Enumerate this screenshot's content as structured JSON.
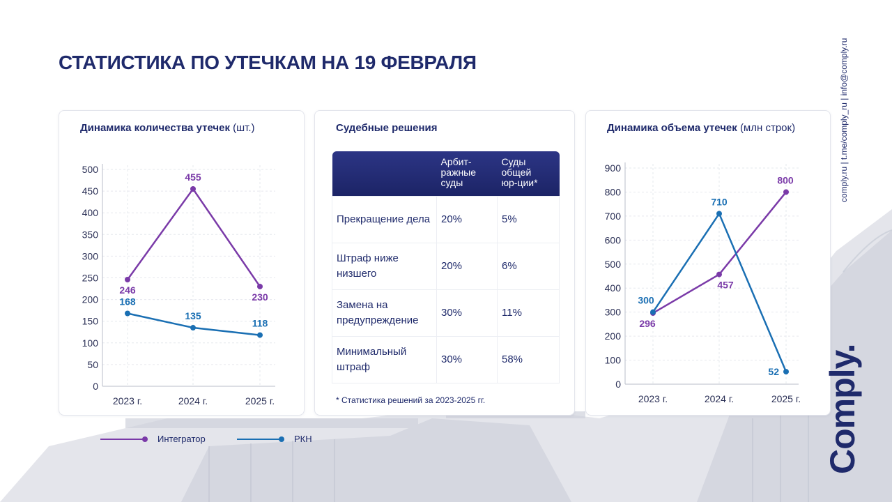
{
  "page": {
    "title": "СТАТИСТИКА ПО УТЕЧКАМ НА 19 ФЕВРАЛЯ",
    "contacts": "comply.ru | t.me/comply_ru | info@comply.ru",
    "brand": "Comply."
  },
  "colors": {
    "integrator": "#7a3aa8",
    "rkn": "#1a6fb3",
    "navy": "#1f2a6b"
  },
  "legend": [
    {
      "label": "Интегратор",
      "color": "#7a3aa8"
    },
    {
      "label": "РКН",
      "color": "#1a6fb3"
    }
  ],
  "court": {
    "title": "Судебные решения",
    "headers": [
      "",
      "Арбит-\nражные\nсуды",
      "Суды\nобщей\nюр-ции*"
    ],
    "rows": [
      {
        "label": "Прекращение дела",
        "arb": "20%",
        "gen": "5%"
      },
      {
        "label": "Штраф ниже низшего",
        "arb": "20%",
        "gen": "6%"
      },
      {
        "label": "Замена на предупреждение",
        "arb": "30%",
        "gen": "11%"
      },
      {
        "label": "Минимальный штраф",
        "arb": "30%",
        "gen": "58%"
      }
    ],
    "footnote": "* Статистика решений за 2023-2025 гг."
  },
  "chart_data": [
    {
      "type": "line",
      "title": "Динамика количества утечек",
      "unit": "(шт.)",
      "categories": [
        "2023 г.",
        "2024 г.",
        "2025 г."
      ],
      "ylim": [
        0,
        500
      ],
      "yticks": [
        0,
        50,
        100,
        150,
        200,
        250,
        300,
        350,
        400,
        450,
        500
      ],
      "grid": true,
      "series": [
        {
          "name": "Интегратор",
          "values": [
            246,
            455,
            230
          ],
          "color": "#7a3aa8"
        },
        {
          "name": "РКН",
          "values": [
            168,
            135,
            118
          ],
          "color": "#1a6fb3"
        }
      ]
    },
    {
      "type": "line",
      "title": "Динамика объема утечек",
      "unit": "(млн строк)",
      "categories": [
        "2023 г.",
        "2024 г.",
        "2025 г."
      ],
      "ylim": [
        0,
        900
      ],
      "yticks": [
        0,
        100,
        200,
        300,
        400,
        500,
        600,
        700,
        800,
        900
      ],
      "grid": true,
      "series": [
        {
          "name": "Интегратор",
          "values": [
            296,
            457,
            800
          ],
          "color": "#7a3aa8"
        },
        {
          "name": "РКН",
          "values": [
            300,
            710,
            52
          ],
          "color": "#1a6fb3"
        }
      ]
    }
  ]
}
